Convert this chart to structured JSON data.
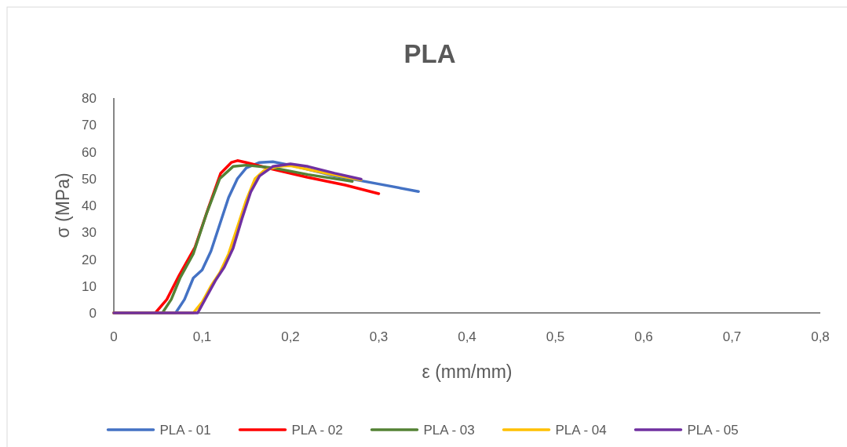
{
  "chart_data": {
    "type": "line",
    "title": "PLA",
    "xlabel": "ε (mm/mm)",
    "ylabel": "σ (MPa)",
    "xlim": [
      0,
      0.8
    ],
    "ylim": [
      0,
      80
    ],
    "xticks": [
      0,
      {
        "value": 0.1,
        "label": "0,1"
      },
      {
        "value": 0.2,
        "label": "0,2"
      },
      {
        "value": 0.3,
        "label": "0,3"
      },
      {
        "value": 0.4,
        "label": "0,4"
      },
      {
        "value": 0.5,
        "label": "0,5"
      },
      {
        "value": 0.6,
        "label": "0,6"
      },
      {
        "value": 0.7,
        "label": "0,7"
      },
      {
        "value": 0.8,
        "label": "0,8"
      }
    ],
    "yticks": [
      0,
      10,
      20,
      30,
      40,
      50,
      60,
      70,
      80
    ],
    "legend": "bottom",
    "grid": false,
    "marker": "none",
    "line_style": "solid",
    "series": [
      {
        "name": "PLA - 01",
        "color": "#4472c4",
        "x": [
          0,
          0.07,
          0.08,
          0.09,
          0.1,
          0.11,
          0.12,
          0.13,
          0.14,
          0.15,
          0.165,
          0.18,
          0.2,
          0.25,
          0.3,
          0.345
        ],
        "values": [
          0,
          0,
          5,
          13,
          16,
          23,
          33,
          43,
          50,
          54,
          56,
          56.3,
          55,
          51,
          48,
          45.2
        ]
      },
      {
        "name": "PLA - 02",
        "color": "#ff0000",
        "x": [
          0,
          0.047,
          0.06,
          0.074,
          0.092,
          0.107,
          0.121,
          0.133,
          0.14,
          0.15,
          0.18,
          0.219,
          0.262,
          0.3
        ],
        "values": [
          0,
          0,
          5,
          14,
          24.5,
          39,
          52,
          56,
          56.7,
          56,
          53.5,
          50.5,
          47.6,
          44.4
        ]
      },
      {
        "name": "PLA - 03",
        "color": "#548235",
        "x": [
          0,
          0.055,
          0.065,
          0.075,
          0.09,
          0.105,
          0.12,
          0.135,
          0.15,
          0.18,
          0.22,
          0.27
        ],
        "values": [
          0,
          0,
          5,
          13,
          22,
          37,
          50,
          54.5,
          55,
          54,
          51.5,
          49
        ]
      },
      {
        "name": "PLA - 04",
        "color": "#ffc000",
        "x": [
          0,
          0.09,
          0.1,
          0.11,
          0.12,
          0.13,
          0.14,
          0.15,
          0.16,
          0.17,
          0.185,
          0.2,
          0.24,
          0.28
        ],
        "values": [
          0,
          0,
          4,
          10,
          15,
          22,
          32,
          42,
          50,
          53,
          54.5,
          54.8,
          52,
          49.5
        ]
      },
      {
        "name": "PLA - 05",
        "color": "#7030a0",
        "x": [
          0,
          0.095,
          0.105,
          0.115,
          0.125,
          0.135,
          0.145,
          0.155,
          0.165,
          0.18,
          0.2,
          0.22,
          0.25,
          0.28
        ],
        "values": [
          0,
          0,
          6,
          12,
          17,
          24,
          35,
          45,
          51,
          54.5,
          55.5,
          54.5,
          52,
          49.8
        ]
      }
    ]
  }
}
